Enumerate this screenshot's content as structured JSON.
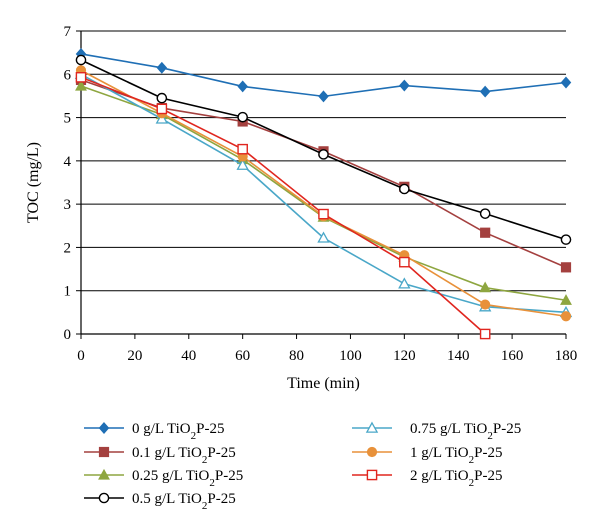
{
  "chart_data": {
    "type": "line",
    "xlabel": "Time (min)",
    "ylabel": "TOC (mg/L)",
    "xlim": [
      0,
      180
    ],
    "ylim": [
      0,
      7
    ],
    "x_ticks": [
      0,
      20,
      40,
      60,
      80,
      100,
      120,
      140,
      160,
      180
    ],
    "y_ticks": [
      0,
      1,
      2,
      3,
      4,
      5,
      6,
      7
    ],
    "grid": "horizontal",
    "legend_position": "bottom",
    "series": [
      {
        "name": "0 g/L TiO2P-25",
        "color": "#1f6fb5",
        "marker": "diamond",
        "points": [
          [
            0,
            6.47
          ],
          [
            30,
            6.15
          ],
          [
            60,
            5.72
          ],
          [
            90,
            5.49
          ],
          [
            120,
            5.74
          ],
          [
            150,
            5.6
          ],
          [
            180,
            5.81
          ]
        ]
      },
      {
        "name": "0.1 g/L TiO2P-25",
        "color": "#a4403f",
        "marker": "square",
        "points": [
          [
            0,
            5.87
          ],
          [
            30,
            5.22
          ],
          [
            60,
            4.91
          ],
          [
            90,
            4.22
          ],
          [
            120,
            3.4
          ],
          [
            150,
            2.34
          ],
          [
            180,
            1.54
          ]
        ]
      },
      {
        "name": "0.25 g/L TiO2P-25",
        "color": "#8ea640",
        "marker": "triangle",
        "points": [
          [
            0,
            5.73
          ],
          [
            30,
            5.07
          ],
          [
            60,
            4.03
          ],
          [
            90,
            2.7
          ],
          [
            120,
            1.78
          ],
          [
            150,
            1.07
          ],
          [
            180,
            0.78
          ]
        ]
      },
      {
        "name": "0.5 g/L TiO2P-25",
        "color": "#000000",
        "marker": "circle-open",
        "points": [
          [
            0,
            6.33
          ],
          [
            30,
            5.45
          ],
          [
            60,
            5.01
          ],
          [
            90,
            4.15
          ],
          [
            120,
            3.35
          ],
          [
            150,
            2.78
          ],
          [
            180,
            2.18
          ]
        ]
      },
      {
        "name": "0.75 g/L TiO2P-25",
        "color": "#4aa7c8",
        "marker": "triangle-open",
        "points": [
          [
            0,
            6.0
          ],
          [
            30,
            4.97
          ],
          [
            60,
            3.9
          ],
          [
            90,
            2.22
          ],
          [
            120,
            1.16
          ],
          [
            150,
            0.63
          ],
          [
            180,
            0.5
          ]
        ]
      },
      {
        "name": "1 g/L TiO2P-25",
        "color": "#e8913a",
        "marker": "circle",
        "points": [
          [
            0,
            6.09
          ],
          [
            30,
            5.1
          ],
          [
            60,
            4.1
          ],
          [
            90,
            2.72
          ],
          [
            120,
            1.82
          ],
          [
            150,
            0.68
          ],
          [
            180,
            0.41
          ]
        ]
      },
      {
        "name": "2 g/L TiO2P-25",
        "color": "#e0261f",
        "marker": "square-open",
        "points": [
          [
            0,
            5.93
          ],
          [
            30,
            5.2
          ],
          [
            60,
            4.27
          ],
          [
            90,
            2.77
          ],
          [
            120,
            1.66
          ],
          [
            150,
            0.0
          ]
        ]
      }
    ]
  }
}
